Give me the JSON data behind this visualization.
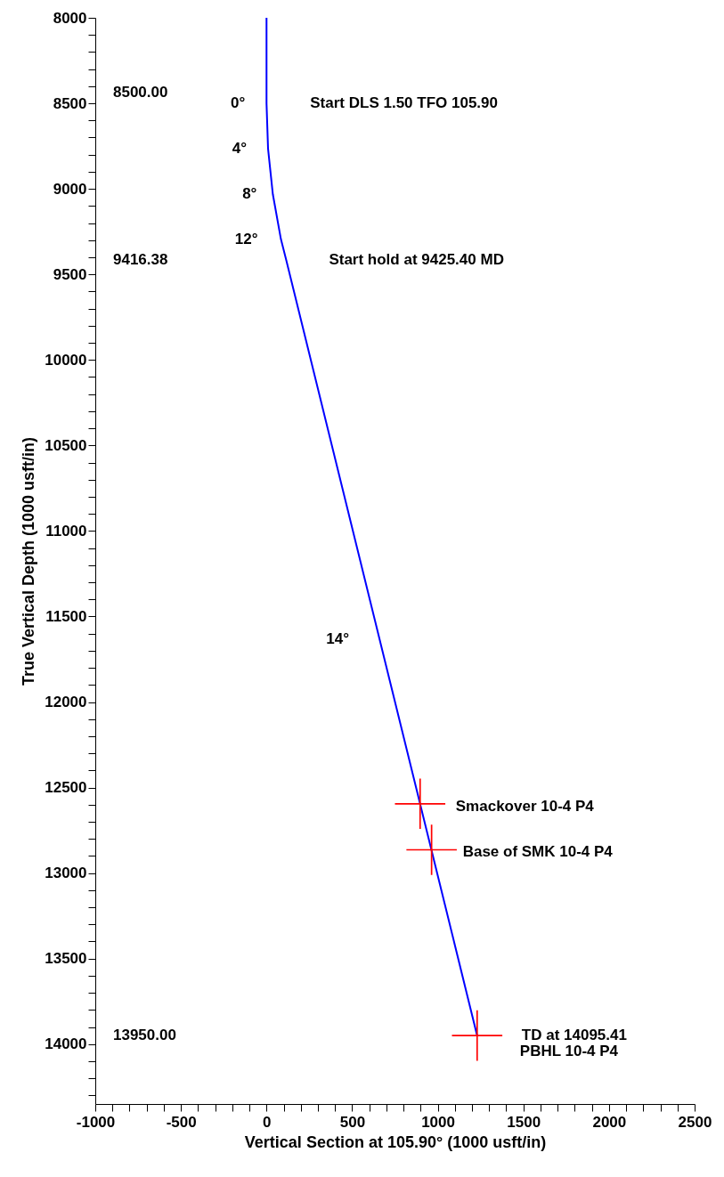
{
  "chart_data": {
    "type": "line",
    "xlabel": "Vertical Section at 105.90° (1000 usft/in)",
    "ylabel": "True Vertical Depth (1000 usft/in)",
    "xlim": [
      -1000,
      2500
    ],
    "ylim": [
      14350,
      8000
    ],
    "xticks": [
      -1000,
      {
        "value": -900,
        "label": null
      },
      {
        "value": -800,
        "label": null
      },
      {
        "value": -700,
        "label": null
      },
      {
        "value": -600,
        "label": null
      },
      -500,
      {
        "value": -400,
        "label": null
      },
      {
        "value": -300,
        "label": null
      },
      {
        "value": -200,
        "label": null
      },
      {
        "value": -100,
        "label": null
      },
      0,
      {
        "value": 100,
        "label": null
      },
      {
        "value": 200,
        "label": null
      },
      {
        "value": 300,
        "label": null
      },
      {
        "value": 400,
        "label": null
      },
      500,
      {
        "value": 600,
        "label": null
      },
      {
        "value": 700,
        "label": null
      },
      {
        "value": 800,
        "label": null
      },
      {
        "value": 900,
        "label": null
      },
      1000,
      {
        "value": 1100,
        "label": null
      },
      {
        "value": 1200,
        "label": null
      },
      {
        "value": 1300,
        "label": null
      },
      {
        "value": 1400,
        "label": null
      },
      1500,
      {
        "value": 1600,
        "label": null
      },
      {
        "value": 1700,
        "label": null
      },
      {
        "value": 1800,
        "label": null
      },
      {
        "value": 1900,
        "label": null
      },
      2000,
      {
        "value": 2100,
        "label": null
      },
      {
        "value": 2200,
        "label": null
      },
      {
        "value": 2300,
        "label": null
      },
      {
        "value": 2400,
        "label": null
      },
      2500
    ],
    "yticks": [
      8000,
      {
        "value": 8100,
        "label": null
      },
      {
        "value": 8200,
        "label": null
      },
      {
        "value": 8300,
        "label": null
      },
      {
        "value": 8400,
        "label": null
      },
      8500,
      {
        "value": 8600,
        "label": null
      },
      {
        "value": 8700,
        "label": null
      },
      {
        "value": 8800,
        "label": null
      },
      {
        "value": 8900,
        "label": null
      },
      9000,
      {
        "value": 9100,
        "label": null
      },
      {
        "value": 9200,
        "label": null
      },
      {
        "value": 9300,
        "label": null
      },
      {
        "value": 9400,
        "label": null
      },
      9500,
      {
        "value": 9600,
        "label": null
      },
      {
        "value": 9700,
        "label": null
      },
      {
        "value": 9800,
        "label": null
      },
      {
        "value": 9900,
        "label": null
      },
      10000,
      {
        "value": 10100,
        "label": null
      },
      {
        "value": 10200,
        "label": null
      },
      {
        "value": 10300,
        "label": null
      },
      {
        "value": 10400,
        "label": null
      },
      10500,
      {
        "value": 10600,
        "label": null
      },
      {
        "value": 10700,
        "label": null
      },
      {
        "value": 10800,
        "label": null
      },
      {
        "value": 10900,
        "label": null
      },
      11000,
      {
        "value": 11100,
        "label": null
      },
      {
        "value": 11200,
        "label": null
      },
      {
        "value": 11300,
        "label": null
      },
      {
        "value": 11400,
        "label": null
      },
      11500,
      {
        "value": 11600,
        "label": null
      },
      {
        "value": 11700,
        "label": null
      },
      {
        "value": 11800,
        "label": null
      },
      {
        "value": 11900,
        "label": null
      },
      12000,
      {
        "value": 12100,
        "label": null
      },
      {
        "value": 12200,
        "label": null
      },
      {
        "value": 12300,
        "label": null
      },
      {
        "value": 12400,
        "label": null
      },
      12500,
      {
        "value": 12600,
        "label": null
      },
      {
        "value": 12700,
        "label": null
      },
      {
        "value": 12800,
        "label": null
      },
      {
        "value": 12900,
        "label": null
      },
      13000,
      {
        "value": 13100,
        "label": null
      },
      {
        "value": 13200,
        "label": null
      },
      {
        "value": 13300,
        "label": null
      },
      {
        "value": 13400,
        "label": null
      },
      13500,
      {
        "value": 13600,
        "label": null
      },
      {
        "value": 13700,
        "label": null
      },
      {
        "value": 13800,
        "label": null
      },
      {
        "value": 13900,
        "label": null
      },
      14000,
      {
        "value": 14100,
        "label": null
      },
      {
        "value": 14200,
        "label": null
      },
      {
        "value": 14300,
        "label": null
      }
    ],
    "series": [
      {
        "color": "#0000ff",
        "x": [
          0,
          0,
          9,
          37,
          84,
          115,
          1230
        ],
        "values": [
          8000,
          8500,
          8766,
          9032,
          9294,
          9416,
          13950
        ]
      },
      {
        "type": "scatter",
        "color": "#ff0000",
        "marker": "cross",
        "x": [
          897,
          964,
          1230
        ],
        "values": [
          12595,
          12864,
          13950
        ]
      }
    ],
    "annotations": [
      {
        "text": "0°",
        "x": 0,
        "y": 8500
      },
      {
        "text": "4°",
        "x": 9,
        "y": 8766
      },
      {
        "text": "8°",
        "x": 37,
        "y": 9032
      },
      {
        "text": "12°",
        "x": 84,
        "y": 9294
      },
      {
        "text": "14°",
        "x": 659,
        "y": 11635
      },
      {
        "text": "Start DLS 1.50 TFO 105.90",
        "x": 0,
        "y": 8500
      },
      {
        "text": "Start hold at 9425.40 MD",
        "x": 115,
        "y": 9416
      },
      {
        "text": "Smackover 10-4  P4",
        "x": 897,
        "y": 12595
      },
      {
        "text": "Base of SMK 10-4 P4",
        "x": 964,
        "y": 12864
      },
      {
        "text": "TD at 14095.41",
        "x": 1230,
        "y": 13950
      },
      {
        "text": "PBHL 10-4 P4",
        "x": 1230,
        "y": 13950
      },
      "8500.00",
      "9416.38",
      "13950.00"
    ]
  }
}
